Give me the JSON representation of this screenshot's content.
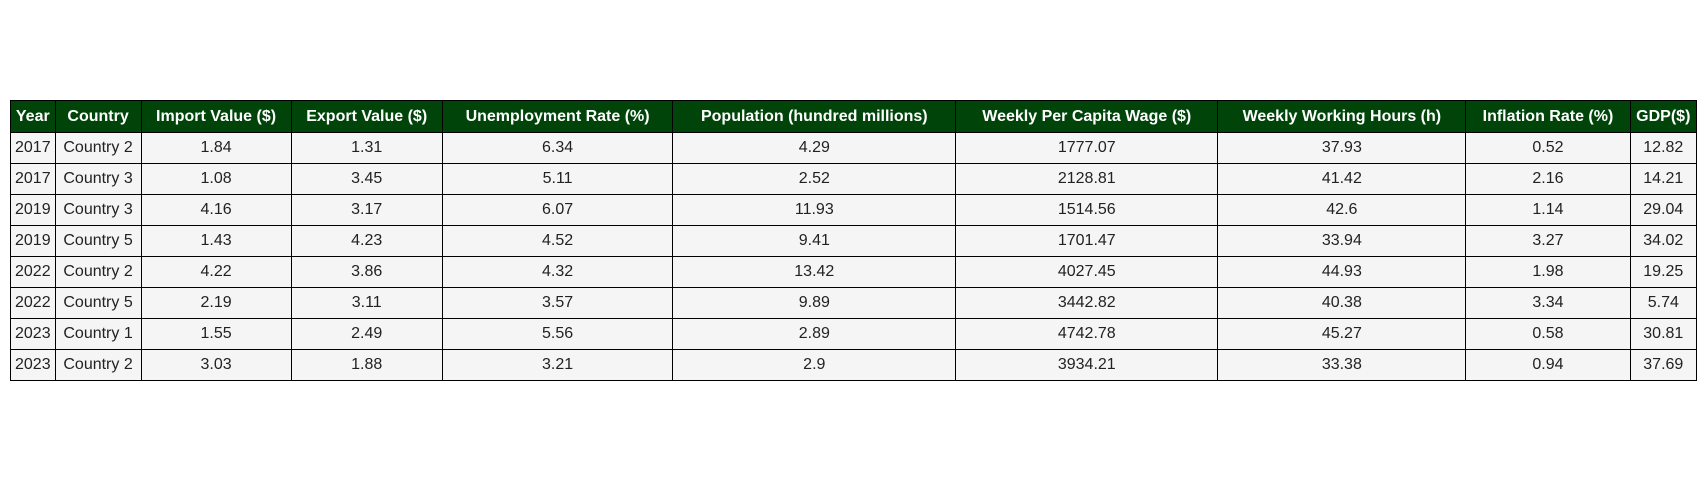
{
  "colors": {
    "header_bg": "#00440a",
    "header_text": "#ffffff",
    "cell_bg": "#f5f5f5",
    "border": "#000000"
  },
  "chart_data": {
    "type": "table",
    "columns": [
      "Year",
      "Country",
      "Import Value ($)",
      "Export Value ($)",
      "Unemployment Rate (%)",
      "Population (hundred millions)",
      "Weekly Per Capita Wage ($)",
      "Weekly Working Hours (h)",
      "Inflation Rate (%)",
      "GDP($)"
    ],
    "rows": [
      [
        "2017",
        "Country 2",
        "1.84",
        "1.31",
        "6.34",
        "4.29",
        "1777.07",
        "37.93",
        "0.52",
        "12.82"
      ],
      [
        "2017",
        "Country 3",
        "1.08",
        "3.45",
        "5.11",
        "2.52",
        "2128.81",
        "41.42",
        "2.16",
        "14.21"
      ],
      [
        "2019",
        "Country 3",
        "4.16",
        "3.17",
        "6.07",
        "11.93",
        "1514.56",
        "42.6",
        "1.14",
        "29.04"
      ],
      [
        "2019",
        "Country 5",
        "1.43",
        "4.23",
        "4.52",
        "9.41",
        "1701.47",
        "33.94",
        "3.27",
        "34.02"
      ],
      [
        "2022",
        "Country 2",
        "4.22",
        "3.86",
        "4.32",
        "13.42",
        "4027.45",
        "44.93",
        "1.98",
        "19.25"
      ],
      [
        "2022",
        "Country 5",
        "2.19",
        "3.11",
        "3.57",
        "9.89",
        "3442.82",
        "40.38",
        "3.34",
        "5.74"
      ],
      [
        "2023",
        "Country 1",
        "1.55",
        "2.49",
        "5.56",
        "2.89",
        "4742.78",
        "45.27",
        "0.58",
        "30.81"
      ],
      [
        "2023",
        "Country 2",
        "3.03",
        "1.88",
        "3.21",
        "2.9",
        "3934.21",
        "33.38",
        "0.94",
        "37.69"
      ]
    ]
  }
}
